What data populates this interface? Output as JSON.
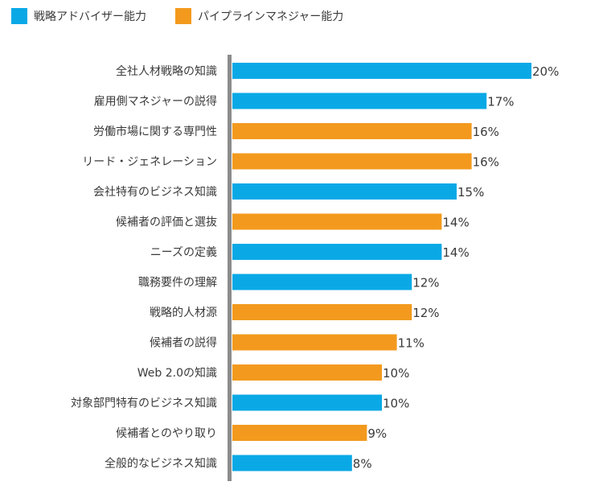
{
  "colors": {
    "advisor": "#0aa9e6",
    "pipeline": "#f39a1e",
    "axis": "#8c8c8c",
    "text": "#3a3a3a"
  },
  "legend": [
    {
      "key": "advisor",
      "label": "戦略アドバイザー能力"
    },
    {
      "key": "pipeline",
      "label": "パイプラインマネジャー能力"
    }
  ],
  "chart_data": {
    "type": "bar",
    "orientation": "horizontal",
    "categories": [
      "全社人材戦略の知識",
      "雇用側マネジャーの説得",
      "労働市場に関する専門性",
      "リード・ジェネレーション",
      "会社特有のビジネス知識",
      "候補者の評価と選抜",
      "ニーズの定義",
      "職務要件の理解",
      "戦略的人材源",
      "候補者の説得",
      "Web 2.0の知識",
      "対象部門特有のビジネス知識",
      "候補者とのやり取り",
      "全般的なビジネス知識"
    ],
    "values": [
      20,
      17,
      16,
      16,
      15,
      14,
      14,
      12,
      12,
      11,
      10,
      10,
      9,
      8
    ],
    "value_labels": [
      "20%",
      "17%",
      "16%",
      "16%",
      "15%",
      "14%",
      "14%",
      "12%",
      "12%",
      "11%",
      "10%",
      "10%",
      "9%",
      "8%"
    ],
    "groups": [
      "advisor",
      "advisor",
      "pipeline",
      "pipeline",
      "advisor",
      "pipeline",
      "advisor",
      "advisor",
      "pipeline",
      "pipeline",
      "pipeline",
      "advisor",
      "pipeline",
      "advisor"
    ],
    "xlim": [
      0,
      20
    ],
    "grid": false,
    "legend_position": "top-left"
  }
}
